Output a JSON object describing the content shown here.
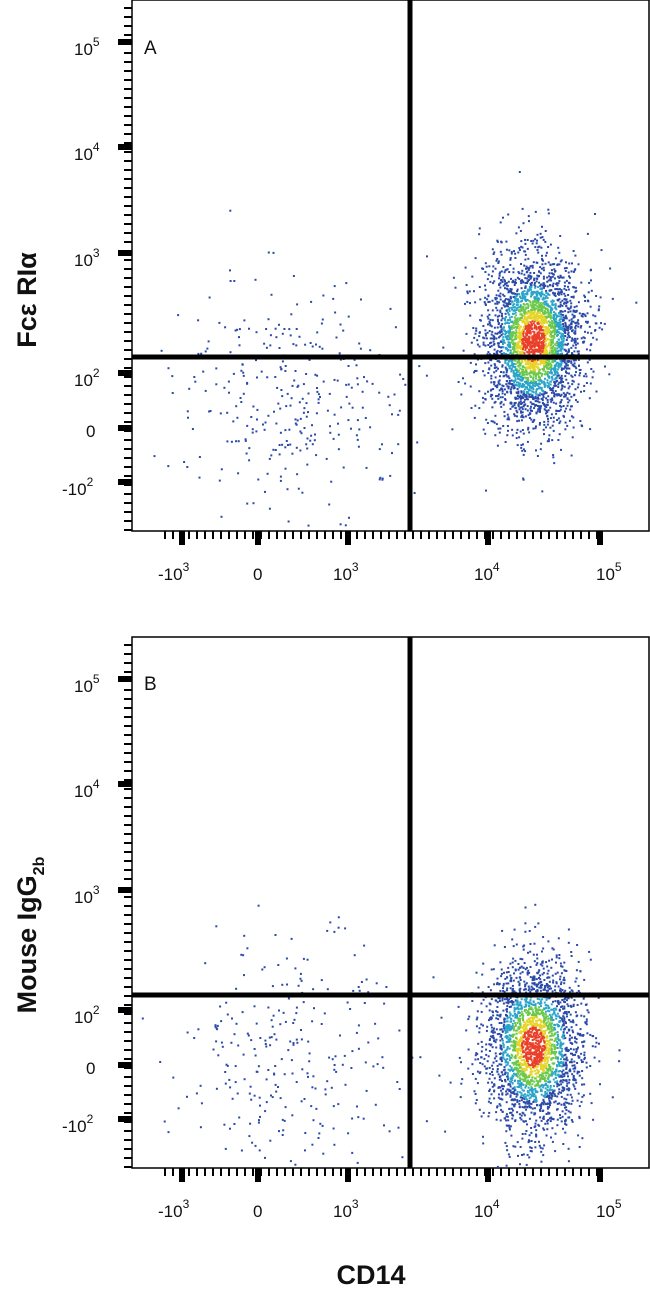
{
  "figure": {
    "x_axis_title": "CD14",
    "x_tick_labels": [
      "-10³",
      "0",
      "10³",
      "10⁴",
      "10⁵"
    ],
    "y_tick_labels": [
      "10⁵",
      "10⁴",
      "10³",
      "10²",
      "0",
      "-10²"
    ]
  },
  "chart_data": [
    {
      "type": "scatter",
      "panel_label": "A",
      "ylabel": "Fcε RIα",
      "x_scale": "biexponential",
      "y_scale": "biexponential",
      "xlabel": "CD14",
      "x_ticks": [
        -1000,
        0,
        1000,
        10000,
        100000
      ],
      "y_ticks": [
        100000,
        10000,
        1000,
        100,
        0,
        -100
      ],
      "xlim": [
        -2000,
        200000
      ],
      "ylim": [
        -400,
        200000
      ],
      "quadrant_gate": {
        "x": 3000,
        "y": 210
      },
      "series": [
        {
          "population": "CD14- events",
          "center": {
            "x": 80,
            "y": 40
          },
          "spread": "wide",
          "count": 320
        },
        {
          "population": "CD14+ events",
          "center": {
            "x": 25000,
            "y": 200
          },
          "spread": "tight",
          "count": 3200
        }
      ]
    },
    {
      "type": "scatter",
      "panel_label": "B",
      "ylabel": "Mouse IgG",
      "ylabel_subscript": "2b",
      "x_scale": "biexponential",
      "y_scale": "biexponential",
      "xlabel": "CD14",
      "x_ticks": [
        -1000,
        0,
        1000,
        10000,
        100000
      ],
      "y_ticks": [
        100000,
        10000,
        1000,
        100,
        0,
        -100
      ],
      "xlim": [
        -2000,
        200000
      ],
      "ylim": [
        -400,
        200000
      ],
      "quadrant_gate": {
        "x": 3000,
        "y": 210
      },
      "series": [
        {
          "population": "CD14- events",
          "center": {
            "x": 100,
            "y": 10
          },
          "spread": "wide",
          "count": 280
        },
        {
          "population": "CD14+ events",
          "center": {
            "x": 25000,
            "y": 20
          },
          "spread": "tight",
          "count": 2600
        }
      ]
    }
  ],
  "colors": {
    "low_density": "#2b4aa8",
    "mid_density": "#2aa4c8",
    "green_density": "#6cc84a",
    "yellow_density": "#e6d42a",
    "high_density": "#e8402a",
    "frame": "#000000"
  }
}
